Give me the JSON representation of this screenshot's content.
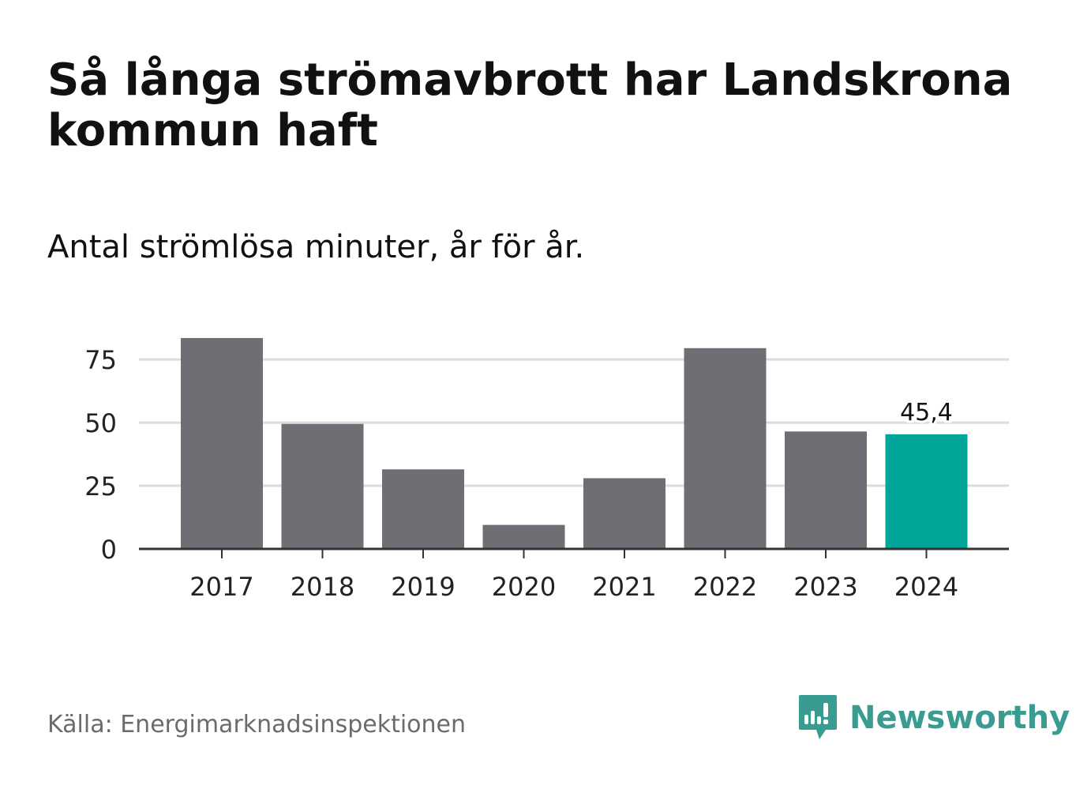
{
  "title": "Så långa strömavbrott har Landskrona kommun haft",
  "subtitle": "Antal strömlösa minuter, år för år.",
  "source": "Källa: Energimarknadsinspektionen",
  "brand": {
    "name": "Newsworthy",
    "icon": "newsworthy-logo-icon",
    "color": "#3a9c90"
  },
  "colors": {
    "bar": "#6f6e74",
    "highlight": "#00a69a",
    "grid": "#dcdcdc",
    "axis": "#333333",
    "text": "#222222"
  },
  "chart_data": {
    "type": "bar",
    "title": "Så långa strömavbrott har Landskrona kommun haft",
    "subtitle": "Antal strömlösa minuter, år för år.",
    "categories": [
      "2017",
      "2018",
      "2019",
      "2020",
      "2021",
      "2022",
      "2023",
      "2024"
    ],
    "values": [
      83.5,
      49.5,
      31.5,
      9.5,
      28,
      79.5,
      46.5,
      45.4
    ],
    "highlight_index": 7,
    "data_labels": [
      {
        "index": 7,
        "text": "45,4"
      }
    ],
    "yticks": [
      0,
      25,
      50,
      75
    ],
    "ylim": [
      0,
      86
    ],
    "xlabel": "",
    "ylabel": "",
    "grid": true
  }
}
